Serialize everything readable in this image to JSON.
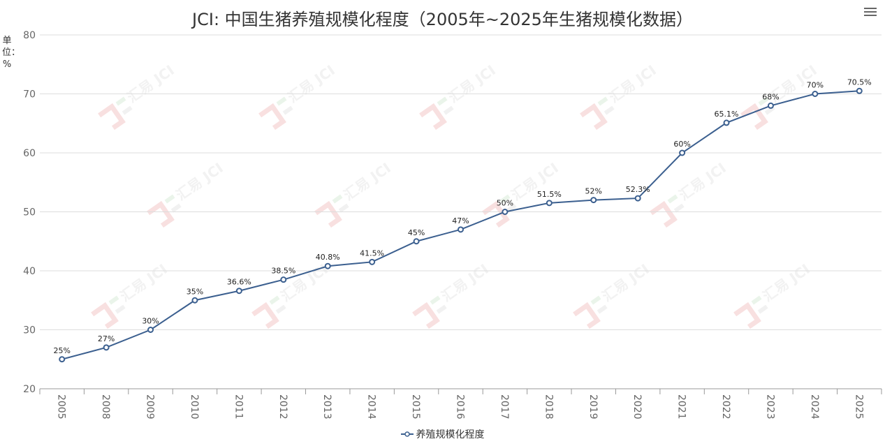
{
  "chart_data": {
    "type": "line",
    "title": "JCI: 中国生猪养殖规模化程度（2005年~2025年生猪规模化数据）",
    "ylabel": "单位：%",
    "ylim": [
      20,
      80
    ],
    "yticks": [
      20,
      30,
      40,
      50,
      60,
      70,
      80
    ],
    "grid": true,
    "legend_position": "bottom",
    "categories": [
      "2005",
      "2008",
      "2009",
      "2010",
      "2011",
      "2012",
      "2013",
      "2014",
      "2015",
      "2016",
      "2017",
      "2018",
      "2019",
      "2020",
      "2021",
      "2022",
      "2023",
      "2024",
      "2025"
    ],
    "series": [
      {
        "name": "养殖规模化程度",
        "values": [
          25,
          27,
          30,
          35,
          36.6,
          38.5,
          40.8,
          41.5,
          45,
          47,
          50,
          51.5,
          52,
          52.3,
          60,
          65.1,
          68,
          70,
          70.5
        ],
        "labels": [
          "25%",
          "27%",
          "30%",
          "35%",
          "36.6%",
          "38.5%",
          "40.8%",
          "41.5%",
          "45%",
          "47%",
          "50%",
          "51.5%",
          "52%",
          "52.3%",
          "60%",
          "65.1%",
          "68%",
          "70%",
          "70.5%"
        ]
      }
    ],
    "colors": {
      "line": "#3b5f8f",
      "grid": "#dddddd",
      "axis": "#999999"
    },
    "watermark": "汇易 JCI"
  },
  "ui": {
    "menu_icon": "hamburger-menu-icon"
  }
}
